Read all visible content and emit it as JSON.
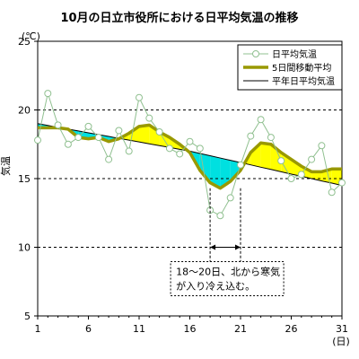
{
  "chart_data": {
    "type": "line",
    "title": "10月の日立市役所における日平均気温の推移",
    "ylabel": "気温",
    "yunit": "(℃)",
    "xunit": "(日)",
    "xlim": [
      1,
      31
    ],
    "ylim": [
      5,
      25
    ],
    "yticks": [
      5,
      10,
      15,
      20,
      25
    ],
    "xticks": [
      1,
      6,
      11,
      16,
      21,
      26,
      31
    ],
    "grid": "horizontal dashed",
    "legend_position": "top-right",
    "days": [
      1,
      2,
      3,
      4,
      5,
      6,
      7,
      8,
      9,
      10,
      11,
      12,
      13,
      14,
      15,
      16,
      17,
      18,
      19,
      20,
      21,
      22,
      23,
      24,
      25,
      26,
      27,
      28,
      29,
      30,
      31
    ],
    "series": [
      {
        "name": "日平均気温",
        "values": [
          17.8,
          21.2,
          18.9,
          17.5,
          18.0,
          18.8,
          18.0,
          16.4,
          18.5,
          17.0,
          20.9,
          19.4,
          18.4,
          17.2,
          16.8,
          17.7,
          17.2,
          12.7,
          12.3,
          13.6,
          16.0,
          18.1,
          19.3,
          18.0,
          16.3,
          15.0,
          15.3,
          16.4,
          17.4,
          14.0,
          14.7
        ],
        "color": "#90c090"
      },
      {
        "name": "5日間移動平均",
        "values": [
          18.7,
          18.7,
          18.7,
          18.6,
          18.0,
          17.9,
          18.0,
          17.7,
          17.9,
          18.3,
          18.8,
          18.9,
          18.4,
          18.0,
          17.5,
          16.9,
          15.6,
          14.7,
          14.3,
          14.8,
          15.6,
          16.9,
          17.6,
          17.5,
          16.9,
          16.4,
          15.9,
          15.5,
          15.5,
          15.7,
          15.7
        ],
        "color": "#999900"
      },
      {
        "name": "平年日平均気温",
        "values": [
          19.0,
          18.87,
          18.73,
          18.6,
          18.47,
          18.33,
          18.2,
          18.07,
          17.93,
          17.8,
          17.67,
          17.53,
          17.4,
          17.27,
          17.13,
          17.0,
          16.83,
          16.67,
          16.5,
          16.33,
          16.17,
          16.0,
          15.83,
          15.67,
          15.5,
          15.33,
          15.17,
          15.0,
          14.83,
          14.67,
          14.5
        ],
        "color": "#000000"
      }
    ],
    "fill_above_color": "#ffff00",
    "fill_below_color": "#00e0e0",
    "annotation": {
      "line1": "18〜20日、北から寒気",
      "line2": "が入り冷え込む。",
      "range": [
        18,
        21
      ]
    }
  }
}
